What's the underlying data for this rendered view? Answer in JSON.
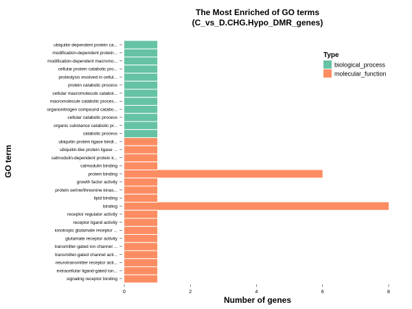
{
  "chart_data": {
    "type": "bar",
    "orientation": "horizontal",
    "title_line1": "The Most Enriched of GO terms",
    "title_line2": "(C_vs_D.CHG.Hypo_DMR_genes)",
    "xlabel": "Number of genes",
    "ylabel": "GO term",
    "xlim": [
      0,
      8
    ],
    "xticks": [
      0,
      2,
      4,
      6,
      8
    ],
    "grid": false,
    "legend": {
      "title": "Type",
      "placement": "right",
      "items": [
        {
          "name": "biological_process",
          "color": "#66C2A5"
        },
        {
          "name": "molecular_function",
          "color": "#FC8D62"
        }
      ]
    },
    "categories": [
      "ubiquitin-dependent protein ca...",
      "modification-dependent protein...",
      "modification-dependent macromo...",
      "cellular protein catabolic pro...",
      "proteolysis involved in cellul...",
      "protein catabolic process",
      "cellular macromolecule catabol...",
      "macromolecule catabolic proces...",
      "organonitrogen compound catabo...",
      "cellular catabolic process",
      "organic substance catabolic pr...",
      "catabolic process",
      "ubiquitin protein ligase bindi...",
      "ubiquitin-like protein ligase ...",
      "calmodulin-dependent protein k...",
      "calmodulin binding",
      "protein binding",
      "growth factor activity",
      "protein serine/threonine kinas...",
      "lipid binding",
      "binding",
      "receptor regulator activity",
      "receptor ligand activity",
      "ionotropic glutamate receptor ...",
      "glutamate receptor activity",
      "transmitter-gated ion channel ...",
      "transmitter-gated channel acti...",
      "neurotransmitter receptor acti...",
      "extracellular ligand-gated ion...",
      "signaling receptor binding"
    ],
    "values": [
      1,
      1,
      1,
      1,
      1,
      1,
      1,
      1,
      1,
      1,
      1,
      1,
      1,
      1,
      1,
      1,
      6,
      1,
      1,
      1,
      8,
      1,
      1,
      1,
      1,
      1,
      1,
      1,
      1,
      1
    ],
    "types": [
      "biological_process",
      "biological_process",
      "biological_process",
      "biological_process",
      "biological_process",
      "biological_process",
      "biological_process",
      "biological_process",
      "biological_process",
      "biological_process",
      "biological_process",
      "biological_process",
      "molecular_function",
      "molecular_function",
      "molecular_function",
      "molecular_function",
      "molecular_function",
      "molecular_function",
      "molecular_function",
      "molecular_function",
      "molecular_function",
      "molecular_function",
      "molecular_function",
      "molecular_function",
      "molecular_function",
      "molecular_function",
      "molecular_function",
      "molecular_function",
      "molecular_function",
      "molecular_function"
    ]
  }
}
